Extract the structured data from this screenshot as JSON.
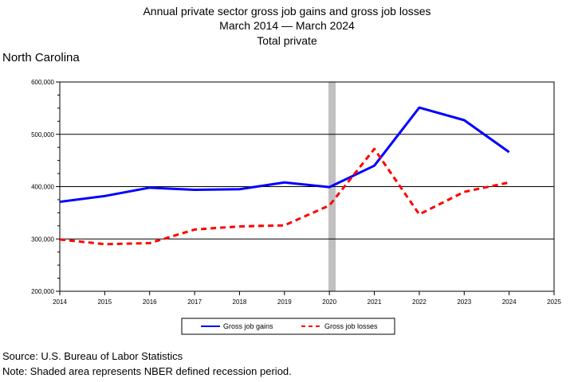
{
  "title": {
    "line1": "Annual private sector gross job gains and gross job losses",
    "line2": "March 2014 — March 2024",
    "line3": "Total private"
  },
  "region_label": "North Carolina",
  "footer": {
    "source": "Source: U.S. Bureau of Labor Statistics",
    "note": "Note: Shaded area represents NBER defined recession period."
  },
  "colors": {
    "gains": "#0000ff",
    "losses": "#ff0000",
    "recession": "#c0c0c0"
  },
  "chart_data": {
    "type": "line",
    "x": [
      2014,
      2015,
      2016,
      2017,
      2018,
      2019,
      2020,
      2021,
      2022,
      2023,
      2024
    ],
    "series": [
      {
        "name": "Gross job gains",
        "values": [
          371000,
          382000,
          398000,
          394000,
          395000,
          408000,
          399000,
          440000,
          551000,
          527000,
          466000
        ]
      },
      {
        "name": "Gross job losses",
        "values": [
          299000,
          290000,
          292000,
          318000,
          324000,
          326000,
          364000,
          472000,
          347000,
          390000,
          408000
        ]
      }
    ],
    "x_ticks": [
      "2014",
      "2015",
      "2016",
      "2017",
      "2018",
      "2019",
      "2020",
      "2021",
      "2022",
      "2023",
      "2024",
      "2025"
    ],
    "y_ticks": [
      "200,000",
      "300,000",
      "400,000",
      "500,000",
      "600,000"
    ],
    "xlim": [
      2014,
      2025
    ],
    "ylim": [
      200000,
      600000
    ],
    "recession_x": 2020.05,
    "legend_placement": "bottom-center",
    "grid": "horizontal"
  }
}
